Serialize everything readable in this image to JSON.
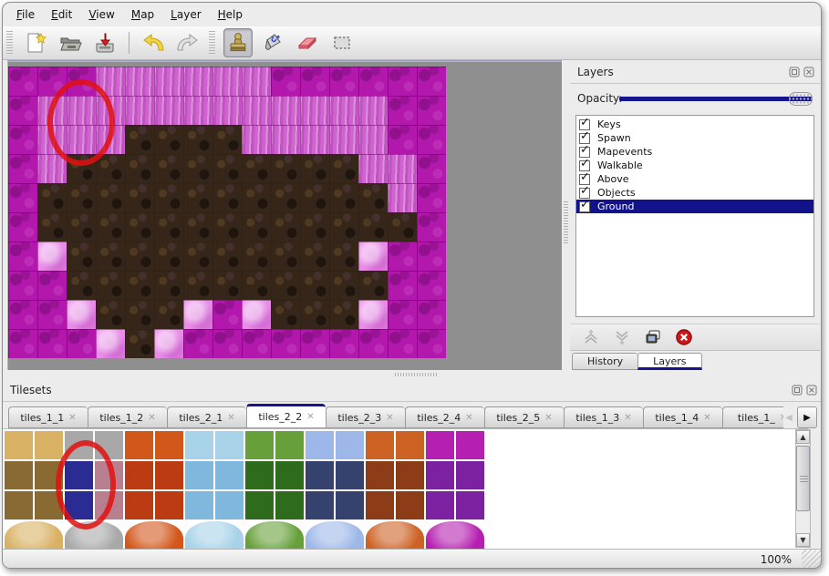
{
  "window": {
    "background": "#ececec",
    "accent_navy": "#15158c",
    "annotation_red": "#e01010"
  },
  "menu_bar": {
    "items": [
      "File",
      "Edit",
      "View",
      "Map",
      "Layer",
      "Help"
    ]
  },
  "toolbar": {
    "icons": [
      "new-file",
      "open-file",
      "save-file",
      "undo",
      "redo",
      "stamp-tool",
      "fill-tool",
      "eraser-tool",
      "select-tool"
    ],
    "active_tool": "stamp-tool"
  },
  "map_view": {
    "tile_size": 32,
    "tile_colors": {
      "M": "#b118ab",
      "P": "#cf63cf",
      "Q": "#e88ce8",
      "B": "#36261a"
    },
    "grid_rows": [
      "MMMPPPPPPMMMMMM",
      "MPPPPPPPPPPPPMM",
      "MPPPBBBBPPPPPMM",
      "MPBBBBBBBBBBPPM",
      "MBBBBBBBBBBBBPM",
      "MBBBBBBBBBBBBBM",
      "MQBBBBBBBBBBQMM",
      "MMBBBBBBBBBBBMM",
      "MMQBBBQMQBBBQMM",
      "MMMQBQMMMMMMMMM"
    ],
    "annotation": "red-ellipse"
  },
  "layers_panel": {
    "title": "Layers",
    "opacity_label": "Opacity:",
    "opacity_percent": 100,
    "layers": [
      {
        "name": "Keys",
        "visible": true,
        "selected": false
      },
      {
        "name": "Spawn",
        "visible": true,
        "selected": false
      },
      {
        "name": "Mapevents",
        "visible": true,
        "selected": false
      },
      {
        "name": "Walkable",
        "visible": true,
        "selected": false
      },
      {
        "name": "Above",
        "visible": true,
        "selected": false
      },
      {
        "name": "Objects",
        "visible": true,
        "selected": false
      },
      {
        "name": "Ground",
        "visible": true,
        "selected": true
      }
    ],
    "buttons": [
      "raise-layer",
      "lower-layer",
      "duplicate-layer",
      "delete-layer"
    ],
    "tabs": [
      {
        "label": "History",
        "active": false
      },
      {
        "label": "Layers",
        "active": true
      }
    ]
  },
  "tilesets_panel": {
    "title": "Tilesets",
    "tabs": [
      {
        "label": "tiles_1_1",
        "active": false
      },
      {
        "label": "tiles_1_2",
        "active": false
      },
      {
        "label": "tiles_2_1",
        "active": false
      },
      {
        "label": "tiles_2_2",
        "active": true
      },
      {
        "label": "tiles_2_3",
        "active": false
      },
      {
        "label": "tiles_2_4",
        "active": false
      },
      {
        "label": "tiles_2_5",
        "active": false
      },
      {
        "label": "tiles_1_3",
        "active": false
      },
      {
        "label": "tiles_1_4",
        "active": false
      },
      {
        "label": "tiles_1_",
        "active": false
      }
    ],
    "palette_rows": [
      [
        "#d9b164",
        "#d9b164",
        "#a8a8a8",
        "#a8a8a8",
        "#d2571a",
        "#d2571a",
        "#a8d2e8",
        "#a8d2e8",
        "#67a03a",
        "#67a03a",
        "#9db8e8",
        "#9db8e8",
        "#cc6224",
        "#cc6224",
        "#b520b0",
        "#b520b0"
      ],
      [
        "#8a6a33",
        "#8a6a33",
        "#3c3c92",
        "#b87f8e",
        "#bb3b12",
        "#bb3b12",
        "#7fb8dc",
        "#7fb8dc",
        "#2e6b1d",
        "#2e6b1d",
        "#35426e",
        "#35426e",
        "#8c3c16",
        "#8c3c16",
        "#7c22a0",
        "#7c22a0"
      ],
      [
        "#8a6a33",
        "#8a6a33",
        "#3c3c92",
        "#b87f8e",
        "#bb3b12",
        "#bb3b12",
        "#7fb8dc",
        "#7fb8dc",
        "#2e6b1d",
        "#2e6b1d",
        "#35426e",
        "#35426e",
        "#8c3c16",
        "#8c3c16",
        "#7c22a0",
        "#7c22a0"
      ],
      [
        "#d9b164",
        "#a8a8a8",
        "#d2571a",
        "#a8d2e8",
        "#67a03a",
        "#9db8e8",
        "#cc6224",
        "#b520b0"
      ]
    ],
    "selected_cells": [
      [
        1,
        2
      ],
      [
        2,
        2
      ]
    ],
    "annotation": "red-ellipse"
  },
  "status_bar": {
    "zoom_level": "100%"
  }
}
